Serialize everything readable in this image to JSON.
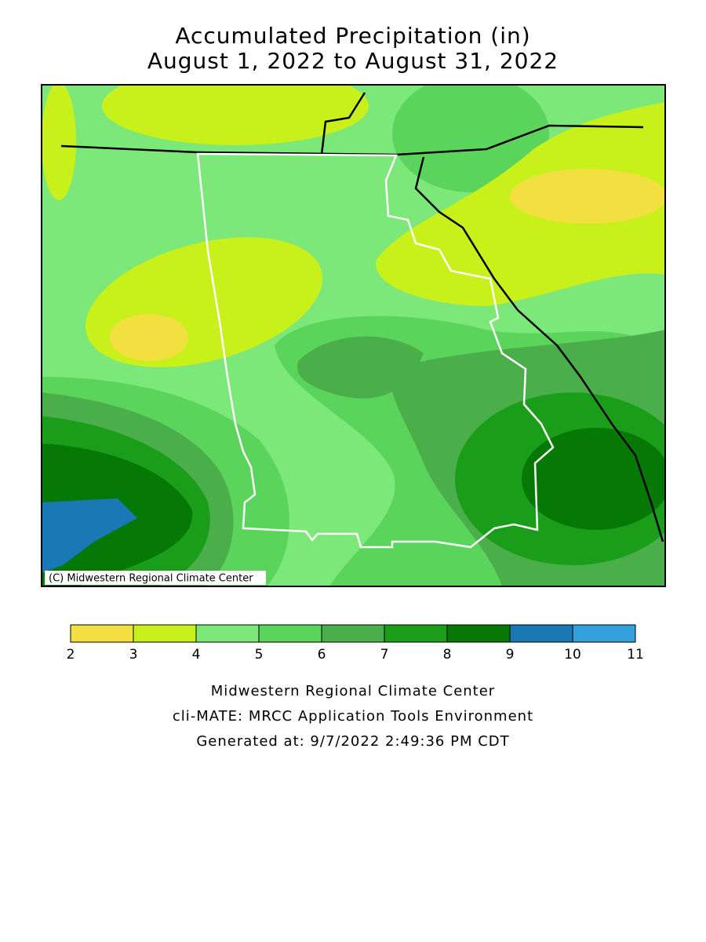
{
  "header": {
    "title": "Accumulated Precipitation (in)",
    "subtitle": "August 1, 2022 to August 31, 2022"
  },
  "map": {
    "credit": "(C) Midwestern Regional Climate Center"
  },
  "legend": {
    "ticks": [
      2,
      3,
      4,
      5,
      6,
      7,
      8,
      9,
      10,
      11
    ],
    "colors": [
      "#f2e040",
      "#c8f01a",
      "#7de87a",
      "#5ad45a",
      "#4aae4a",
      "#1a9e1a",
      "#057805",
      "#1a78b4",
      "#32a0dc"
    ]
  },
  "footer": [
    "Midwestern Regional Climate Center",
    "cli-MATE: MRCC Application Tools Environment",
    "Generated at: 9/7/2022 2:49:36 PM CDT"
  ]
}
